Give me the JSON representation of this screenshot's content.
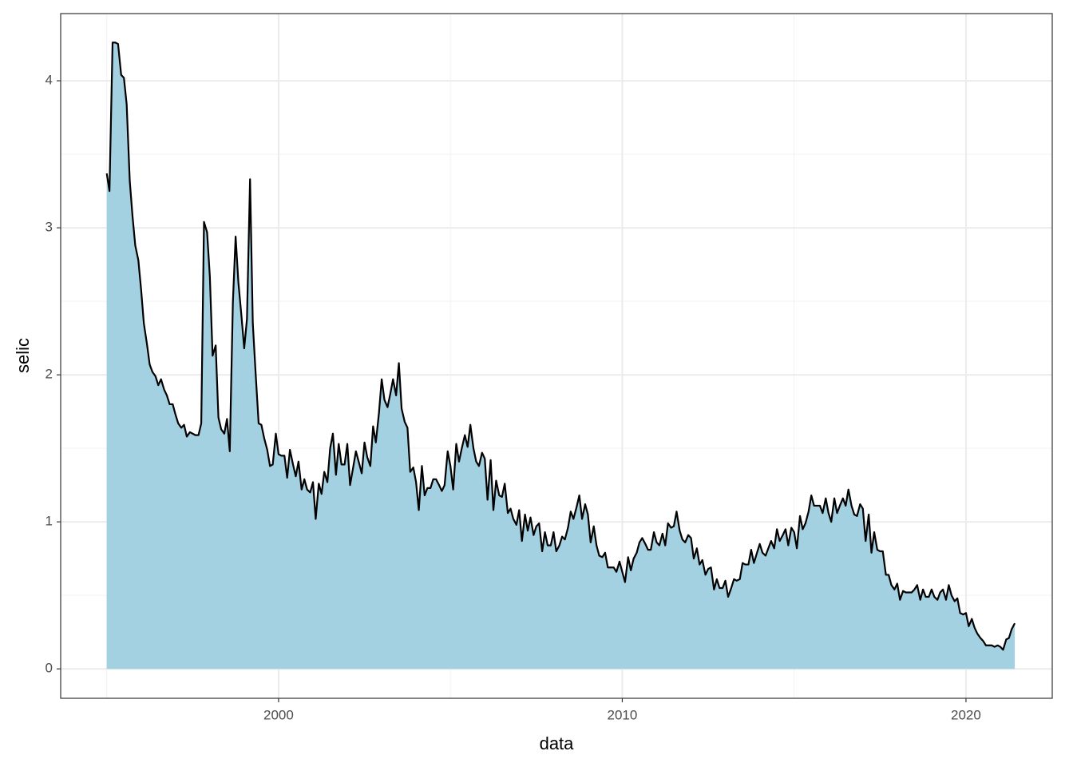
{
  "chart_data": {
    "type": "area",
    "x_label": "data",
    "y_label": "selic",
    "fill": "#a3d1e2",
    "line_color": "#000000",
    "grid": true,
    "xlim": [
      1993.66,
      2022.51
    ],
    "xticks": [
      2000,
      2010,
      2020
    ],
    "ylim": [
      -0.2,
      4.457
    ],
    "yticks": [
      0,
      1,
      2,
      3,
      4
    ],
    "x": [
      1995,
      1995.08,
      1995.17,
      1995.25,
      1995.33,
      1995.42,
      1995.5,
      1995.58,
      1995.67,
      1995.75,
      1995.83,
      1995.92,
      1996,
      1996.08,
      1996.17,
      1996.25,
      1996.33,
      1996.42,
      1996.5,
      1996.58,
      1996.67,
      1996.75,
      1996.83,
      1996.92,
      1997,
      1997.08,
      1997.17,
      1997.25,
      1997.33,
      1997.42,
      1997.5,
      1997.58,
      1997.67,
      1997.75,
      1997.83,
      1997.92,
      1998,
      1998.08,
      1998.17,
      1998.25,
      1998.33,
      1998.42,
      1998.5,
      1998.58,
      1998.67,
      1998.75,
      1998.83,
      1998.92,
      1999,
      1999.08,
      1999.17,
      1999.25,
      1999.33,
      1999.42,
      1999.5,
      1999.58,
      1999.67,
      1999.75,
      1999.83,
      1999.92,
      2000,
      2000.08,
      2000.17,
      2000.25,
      2000.33,
      2000.42,
      2000.5,
      2000.58,
      2000.67,
      2000.75,
      2000.83,
      2000.92,
      2001,
      2001.08,
      2001.17,
      2001.25,
      2001.33,
      2001.42,
      2001.5,
      2001.58,
      2001.67,
      2001.75,
      2001.83,
      2001.92,
      2002,
      2002.08,
      2002.17,
      2002.25,
      2002.33,
      2002.42,
      2002.5,
      2002.58,
      2002.67,
      2002.75,
      2002.83,
      2002.92,
      2003,
      2003.08,
      2003.17,
      2003.25,
      2003.33,
      2003.42,
      2003.5,
      2003.58,
      2003.67,
      2003.75,
      2003.83,
      2003.92,
      2004,
      2004.08,
      2004.17,
      2004.25,
      2004.33,
      2004.42,
      2004.5,
      2004.58,
      2004.67,
      2004.75,
      2004.83,
      2004.92,
      2005,
      2005.08,
      2005.17,
      2005.25,
      2005.33,
      2005.42,
      2005.5,
      2005.58,
      2005.67,
      2005.75,
      2005.83,
      2005.92,
      2006,
      2006.08,
      2006.17,
      2006.25,
      2006.33,
      2006.42,
      2006.5,
      2006.58,
      2006.67,
      2006.75,
      2006.83,
      2006.92,
      2007,
      2007.08,
      2007.17,
      2007.25,
      2007.33,
      2007.42,
      2007.5,
      2007.58,
      2007.67,
      2007.75,
      2007.83,
      2007.92,
      2008,
      2008.08,
      2008.17,
      2008.25,
      2008.33,
      2008.42,
      2008.5,
      2008.58,
      2008.67,
      2008.75,
      2008.83,
      2008.92,
      2009,
      2009.08,
      2009.17,
      2009.25,
      2009.33,
      2009.42,
      2009.5,
      2009.58,
      2009.67,
      2009.75,
      2009.83,
      2009.92,
      2010,
      2010.08,
      2010.17,
      2010.25,
      2010.33,
      2010.42,
      2010.5,
      2010.58,
      2010.67,
      2010.75,
      2010.83,
      2010.92,
      2011,
      2011.08,
      2011.17,
      2011.25,
      2011.33,
      2011.42,
      2011.5,
      2011.58,
      2011.67,
      2011.75,
      2011.83,
      2011.92,
      2012,
      2012.08,
      2012.17,
      2012.25,
      2012.33,
      2012.42,
      2012.5,
      2012.58,
      2012.67,
      2012.75,
      2012.83,
      2012.92,
      2013,
      2013.08,
      2013.17,
      2013.25,
      2013.33,
      2013.42,
      2013.5,
      2013.58,
      2013.67,
      2013.75,
      2013.83,
      2013.92,
      2014,
      2014.08,
      2014.17,
      2014.25,
      2014.33,
      2014.42,
      2014.5,
      2014.58,
      2014.67,
      2014.75,
      2014.83,
      2014.92,
      2015,
      2015.08,
      2015.17,
      2015.25,
      2015.33,
      2015.42,
      2015.5,
      2015.58,
      2015.67,
      2015.75,
      2015.83,
      2015.92,
      2016,
      2016.08,
      2016.17,
      2016.25,
      2016.33,
      2016.42,
      2016.5,
      2016.58,
      2016.67,
      2016.75,
      2016.83,
      2016.92,
      2017,
      2017.08,
      2017.17,
      2017.25,
      2017.33,
      2017.42,
      2017.5,
      2017.58,
      2017.67,
      2017.75,
      2017.83,
      2017.92,
      2018,
      2018.08,
      2018.17,
      2018.25,
      2018.33,
      2018.42,
      2018.5,
      2018.58,
      2018.67,
      2018.75,
      2018.83,
      2018.92,
      2019,
      2019.08,
      2019.17,
      2019.25,
      2019.33,
      2019.42,
      2019.5,
      2019.58,
      2019.67,
      2019.75,
      2019.83,
      2019.92,
      2020,
      2020.08,
      2020.17,
      2020.25,
      2020.33,
      2020.42,
      2020.5,
      2020.58,
      2020.67,
      2020.75,
      2020.83,
      2020.92,
      2021,
      2021.08,
      2021.17,
      2021.25,
      2021.33,
      2021.42
    ],
    "values": [
      3.37,
      3.25,
      4.26,
      4.26,
      4.25,
      4.04,
      4.02,
      3.84,
      3.32,
      3.08,
      2.88,
      2.78,
      2.58,
      2.35,
      2.21,
      2.07,
      2.02,
      1.99,
      1.93,
      1.97,
      1.9,
      1.86,
      1.8,
      1.8,
      1.73,
      1.67,
      1.64,
      1.66,
      1.58,
      1.61,
      1.6,
      1.59,
      1.59,
      1.67,
      3.04,
      2.97,
      2.67,
      2.13,
      2.2,
      1.71,
      1.63,
      1.6,
      1.7,
      1.48,
      2.49,
      2.94,
      2.63,
      2.4,
      2.18,
      2.38,
      3.33,
      2.35,
      2.02,
      1.67,
      1.66,
      1.57,
      1.49,
      1.38,
      1.39,
      1.6,
      1.46,
      1.45,
      1.45,
      1.3,
      1.49,
      1.39,
      1.31,
      1.41,
      1.22,
      1.29,
      1.22,
      1.2,
      1.27,
      1.02,
      1.26,
      1.19,
      1.34,
      1.27,
      1.5,
      1.6,
      1.32,
      1.53,
      1.39,
      1.39,
      1.53,
      1.25,
      1.37,
      1.48,
      1.41,
      1.33,
      1.54,
      1.44,
      1.38,
      1.65,
      1.54,
      1.74,
      1.97,
      1.83,
      1.78,
      1.87,
      1.97,
      1.86,
      2.08,
      1.77,
      1.68,
      1.64,
      1.34,
      1.37,
      1.27,
      1.08,
      1.38,
      1.18,
      1.23,
      1.23,
      1.29,
      1.29,
      1.25,
      1.21,
      1.25,
      1.48,
      1.38,
      1.22,
      1.53,
      1.41,
      1.5,
      1.59,
      1.51,
      1.66,
      1.5,
      1.41,
      1.38,
      1.47,
      1.43,
      1.15,
      1.42,
      1.08,
      1.28,
      1.18,
      1.17,
      1.26,
      1.06,
      1.09,
      1.02,
      0.98,
      1.08,
      0.87,
      1.05,
      0.94,
      1.03,
      0.91,
      0.97,
      0.99,
      0.8,
      0.93,
      0.84,
      0.84,
      0.93,
      0.8,
      0.84,
      0.9,
      0.88,
      0.96,
      1.07,
      1.02,
      1.1,
      1.18,
      1.02,
      1.12,
      1.05,
      0.86,
      0.97,
      0.84,
      0.77,
      0.76,
      0.79,
      0.69,
      0.69,
      0.69,
      0.66,
      0.73,
      0.66,
      0.59,
      0.76,
      0.67,
      0.75,
      0.79,
      0.86,
      0.89,
      0.85,
      0.81,
      0.81,
      0.93,
      0.86,
      0.84,
      0.92,
      0.84,
      0.99,
      0.96,
      0.97,
      1.07,
      0.94,
      0.88,
      0.86,
      0.91,
      0.89,
      0.75,
      0.82,
      0.71,
      0.74,
      0.64,
      0.68,
      0.69,
      0.54,
      0.61,
      0.55,
      0.55,
      0.6,
      0.49,
      0.55,
      0.61,
      0.6,
      0.61,
      0.72,
      0.71,
      0.71,
      0.81,
      0.72,
      0.79,
      0.85,
      0.79,
      0.77,
      0.82,
      0.87,
      0.82,
      0.95,
      0.87,
      0.91,
      0.95,
      0.84,
      0.96,
      0.93,
      0.82,
      1.04,
      0.95,
      0.99,
      1.07,
      1.18,
      1.11,
      1.11,
      1.11,
      1.06,
      1.16,
      1.06,
      1.0,
      1.16,
      1.06,
      1.11,
      1.16,
      1.11,
      1.22,
      1.11,
      1.05,
      1.04,
      1.12,
      1.09,
      0.87,
      1.05,
      0.79,
      0.93,
      0.81,
      0.8,
      0.8,
      0.64,
      0.64,
      0.57,
      0.54,
      0.58,
      0.47,
      0.53,
      0.52,
      0.52,
      0.52,
      0.54,
      0.57,
      0.47,
      0.54,
      0.49,
      0.49,
      0.54,
      0.49,
      0.47,
      0.52,
      0.54,
      0.47,
      0.57,
      0.5,
      0.46,
      0.48,
      0.38,
      0.37,
      0.38,
      0.29,
      0.34,
      0.28,
      0.24,
      0.21,
      0.19,
      0.16,
      0.16,
      0.16,
      0.15,
      0.16,
      0.15,
      0.13,
      0.2,
      0.21,
      0.27,
      0.31
    ]
  }
}
